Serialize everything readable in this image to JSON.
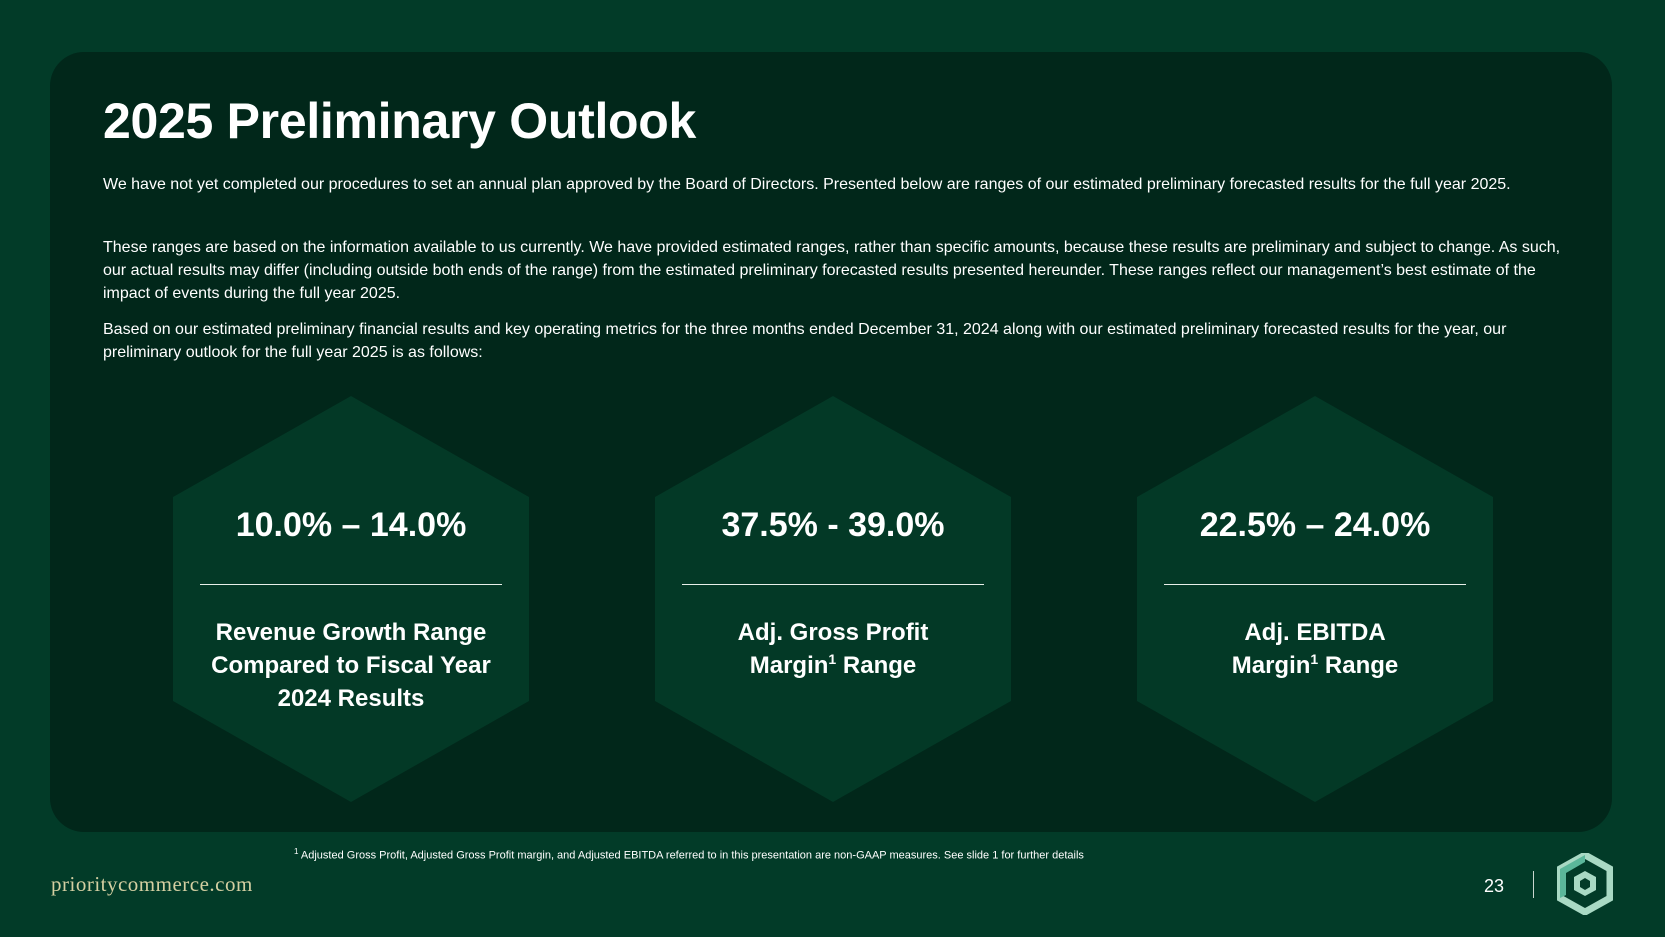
{
  "slide": {
    "title": "2025 Preliminary Outlook",
    "paragraphs": [
      "We have not yet completed our procedures to set an annual plan approved by the Board of Directors. Presented below are ranges of our estimated preliminary forecasted results for the full year 2025.",
      "These ranges are based on the information available to us currently. We have provided estimated ranges, rather than specific amounts, because these results are preliminary and subject to change. As such, our actual results may differ (including outside both ends of the range) from the estimated preliminary forecasted results presented hereunder.  These ranges reflect our management’s best estimate of the impact of events during the full year 2025.",
      "Based on our estimated preliminary financial results and key operating metrics for the three months ended December 31, 2024 along with our estimated preliminary forecasted results for the year, our preliminary outlook for the full year 2025 is as follows:"
    ]
  },
  "metrics": [
    {
      "value": "10.0% – 14.0%",
      "label_lines": [
        "Revenue Growth Range",
        "Compared to Fiscal Year",
        "2024 Results"
      ]
    },
    {
      "value": "37.5% - 39.0%",
      "label_line1": "Adj. Gross Profit",
      "label_line2_pre": "Margin",
      "label_sup": "1",
      "label_line2_post": " Range"
    },
    {
      "value": "22.5% – 24.0%",
      "label_line1": "Adj. EBITDA",
      "label_line2_pre": "Margin",
      "label_sup": "1",
      "label_line2_post": " Range"
    }
  ],
  "footer": {
    "footnote_marker": "1",
    "footnote_text": " Adjusted Gross Profit, Adjusted Gross Profit margin, and Adjusted EBITDA referred to in this presentation are non-GAAP measures. See slide 1 for further details",
    "brand": "prioritycommerce.com",
    "page_number": "23"
  },
  "colors": {
    "page_bg": "#023b28",
    "card_bg": "#01271a",
    "hex_fill": "#033926",
    "brand_text": "#d4cfa2",
    "logo_light": "#a9d9c4",
    "logo_mid": "#5bb79a"
  },
  "icons": {
    "logo": "priority-hexagon-logo-icon"
  }
}
